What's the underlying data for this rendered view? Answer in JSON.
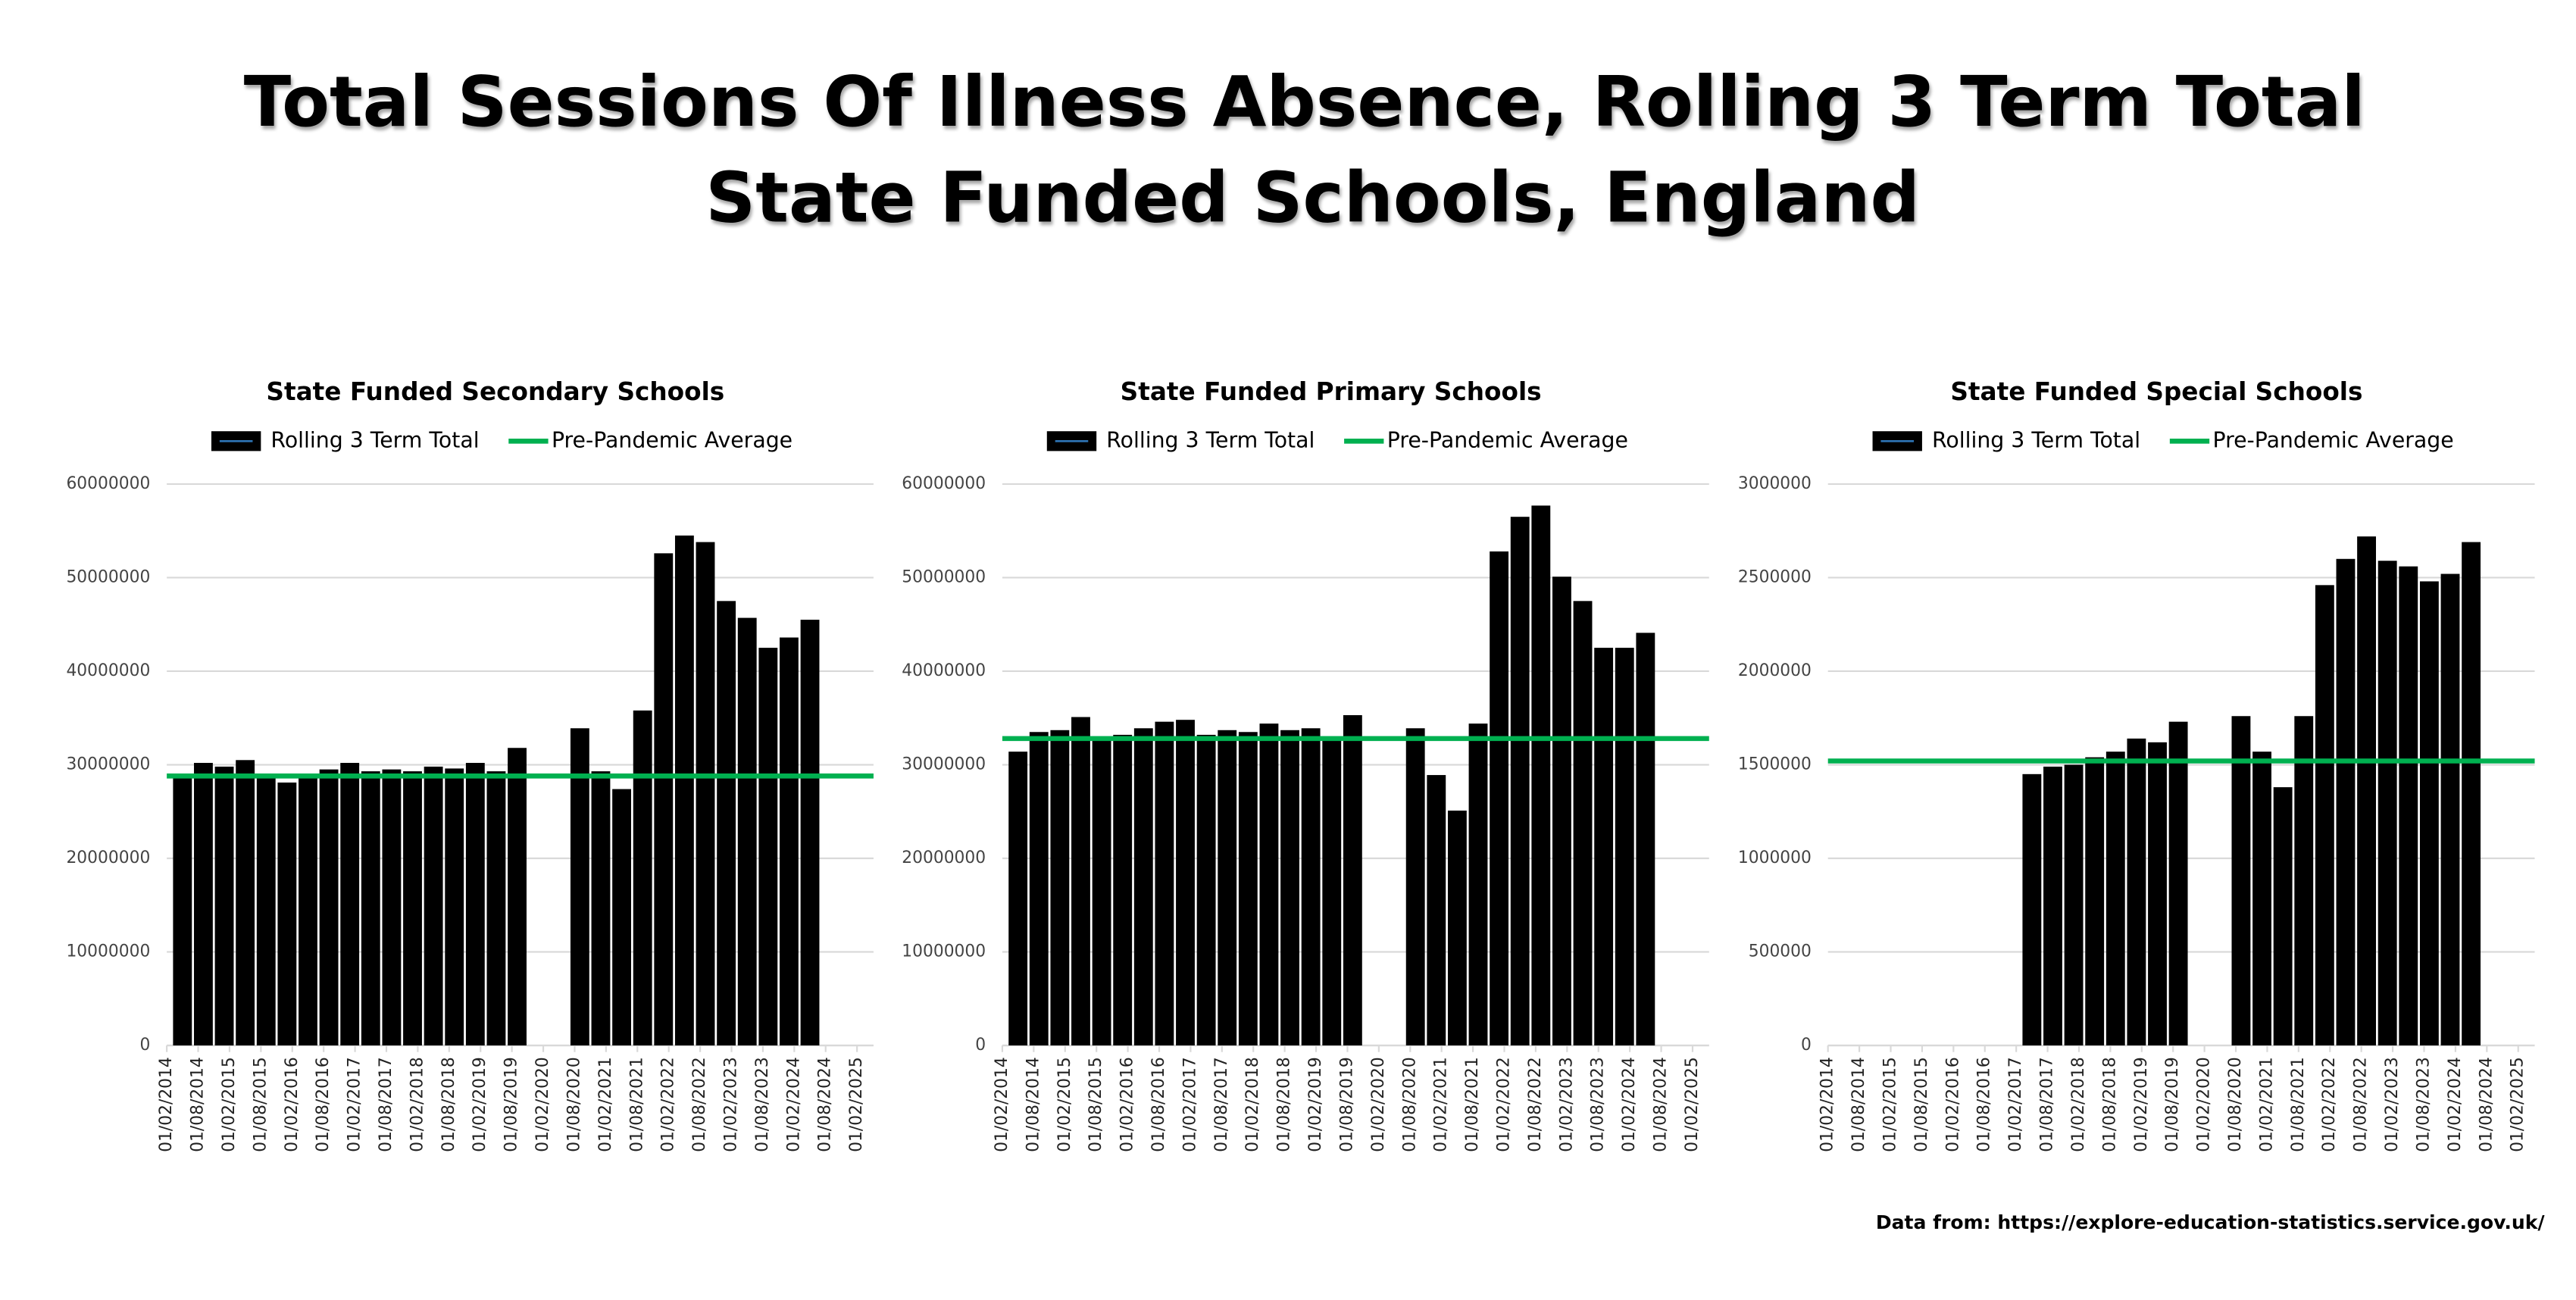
{
  "title": "Total Sessions Of Illness Absence, Rolling 3 Term Total",
  "subtitle": "State Funded Schools, England",
  "source": "Data from: https://explore-education-statistics.service.gov.uk/",
  "chart_data": [
    {
      "type": "bar",
      "title": "State Funded Secondary Schools",
      "x": [
        "01/05/2014",
        "01/09/2014",
        "01/01/2015",
        "01/05/2015",
        "01/09/2015",
        "01/01/2016",
        "01/05/2016",
        "01/09/2016",
        "01/01/2017",
        "01/05/2017",
        "01/09/2017",
        "01/01/2018",
        "01/05/2018",
        "01/09/2018",
        "01/01/2019",
        "01/05/2019",
        "01/09/2019",
        "01/01/2020",
        "01/05/2020",
        "01/09/2020",
        "01/01/2021",
        "01/05/2021",
        "01/09/2021",
        "01/01/2022",
        "01/05/2022",
        "01/09/2022",
        "01/01/2023",
        "01/05/2023",
        "01/09/2023",
        "01/01/2024",
        "01/05/2024"
      ],
      "series": [
        {
          "name": "Rolling 3 Term Total",
          "color": "#000000",
          "values": [
            28900000,
            30200000,
            29800000,
            30500000,
            28600000,
            28100000,
            28900000,
            29500000,
            30200000,
            29300000,
            29500000,
            29300000,
            29800000,
            29600000,
            30200000,
            29300000,
            31800000,
            null,
            null,
            33900000,
            29300000,
            27400000,
            35800000,
            52600000,
            54500000,
            53800000,
            47500000,
            45700000,
            42500000,
            43600000,
            45500000
          ]
        },
        {
          "name": "Pre-Pandemic Average",
          "color": "#00b050",
          "value": 28800000
        }
      ],
      "xlim": [
        "01/02/2014",
        "01/02/2025"
      ],
      "xticks": [
        "01/02/2014",
        "01/08/2014",
        "01/02/2015",
        "01/08/2015",
        "01/02/2016",
        "01/08/2016",
        "01/02/2017",
        "01/08/2017",
        "01/02/2018",
        "01/08/2018",
        "01/02/2019",
        "01/08/2019",
        "01/02/2020",
        "01/08/2020",
        "01/02/2021",
        "01/08/2021",
        "01/02/2022",
        "01/08/2022",
        "01/02/2023",
        "01/08/2023",
        "01/02/2024",
        "01/08/2024",
        "01/02/2025"
      ],
      "ylim": [
        0,
        60000000
      ],
      "yticks": [
        0,
        10000000,
        20000000,
        30000000,
        40000000,
        50000000,
        60000000
      ],
      "grid": true,
      "legend": "top"
    },
    {
      "type": "bar",
      "title": "State Funded Primary Schools",
      "x": [
        "01/05/2014",
        "01/09/2014",
        "01/01/2015",
        "01/05/2015",
        "01/09/2015",
        "01/01/2016",
        "01/05/2016",
        "01/09/2016",
        "01/01/2017",
        "01/05/2017",
        "01/09/2017",
        "01/01/2018",
        "01/05/2018",
        "01/09/2018",
        "01/01/2019",
        "01/05/2019",
        "01/09/2019",
        "01/01/2020",
        "01/05/2020",
        "01/09/2020",
        "01/01/2021",
        "01/05/2021",
        "01/09/2021",
        "01/01/2022",
        "01/05/2022",
        "01/09/2022",
        "01/01/2023",
        "01/05/2023",
        "01/09/2023",
        "01/01/2024",
        "01/05/2024"
      ],
      "series": [
        {
          "name": "Rolling 3 Term Total",
          "color": "#000000",
          "values": [
            31400000,
            33500000,
            33700000,
            35100000,
            32800000,
            33200000,
            33900000,
            34600000,
            34800000,
            33200000,
            33700000,
            33500000,
            34400000,
            33700000,
            33900000,
            33000000,
            35300000,
            null,
            null,
            33900000,
            28900000,
            25100000,
            34400000,
            52800000,
            56500000,
            57700000,
            50100000,
            47500000,
            42500000,
            42500000,
            44100000
          ]
        },
        {
          "name": "Pre-Pandemic Average",
          "color": "#00b050",
          "value": 32800000
        }
      ],
      "xlim": [
        "01/02/2014",
        "01/02/2025"
      ],
      "xticks": [
        "01/02/2014",
        "01/08/2014",
        "01/02/2015",
        "01/08/2015",
        "01/02/2016",
        "01/08/2016",
        "01/02/2017",
        "01/08/2017",
        "01/02/2018",
        "01/08/2018",
        "01/02/2019",
        "01/08/2019",
        "01/02/2020",
        "01/08/2020",
        "01/02/2021",
        "01/08/2021",
        "01/02/2022",
        "01/08/2022",
        "01/02/2023",
        "01/08/2023",
        "01/02/2024",
        "01/08/2024",
        "01/02/2025"
      ],
      "ylim": [
        0,
        60000000
      ],
      "yticks": [
        0,
        10000000,
        20000000,
        30000000,
        40000000,
        50000000,
        60000000
      ],
      "grid": true,
      "legend": "top"
    },
    {
      "type": "bar",
      "title": "State Funded Special Schools",
      "x": [
        "01/05/2014",
        "01/09/2014",
        "01/01/2015",
        "01/05/2015",
        "01/09/2015",
        "01/01/2016",
        "01/05/2016",
        "01/09/2016",
        "01/01/2017",
        "01/05/2017",
        "01/09/2017",
        "01/01/2018",
        "01/05/2018",
        "01/09/2018",
        "01/01/2019",
        "01/05/2019",
        "01/09/2019",
        "01/01/2020",
        "01/05/2020",
        "01/09/2020",
        "01/01/2021",
        "01/05/2021",
        "01/09/2021",
        "01/01/2022",
        "01/05/2022",
        "01/09/2022",
        "01/01/2023",
        "01/05/2023",
        "01/09/2023",
        "01/01/2024",
        "01/05/2024"
      ],
      "series": [
        {
          "name": "Rolling 3 Term Total",
          "color": "#000000",
          "values": [
            null,
            null,
            null,
            null,
            null,
            null,
            null,
            null,
            null,
            1450000,
            1490000,
            1500000,
            1540000,
            1570000,
            1640000,
            1620000,
            1730000,
            null,
            null,
            1760000,
            1570000,
            1380000,
            1760000,
            2460000,
            2600000,
            2720000,
            2590000,
            2560000,
            2480000,
            2520000,
            2690000
          ]
        },
        {
          "name": "Pre-Pandemic Average",
          "color": "#00b050",
          "value": 1520000
        }
      ],
      "xlim": [
        "01/02/2014",
        "01/02/2025"
      ],
      "xticks": [
        "01/02/2014",
        "01/08/2014",
        "01/02/2015",
        "01/08/2015",
        "01/02/2016",
        "01/08/2016",
        "01/02/2017",
        "01/08/2017",
        "01/02/2018",
        "01/08/2018",
        "01/02/2019",
        "01/08/2019",
        "01/02/2020",
        "01/08/2020",
        "01/02/2021",
        "01/08/2021",
        "01/02/2022",
        "01/08/2022",
        "01/02/2023",
        "01/08/2023",
        "01/02/2024",
        "01/08/2024",
        "01/02/2025"
      ],
      "ylim": [
        0,
        3000000
      ],
      "yticks": [
        0,
        500000,
        1000000,
        1500000,
        2000000,
        2500000,
        3000000
      ],
      "grid": true,
      "legend": "top"
    }
  ]
}
